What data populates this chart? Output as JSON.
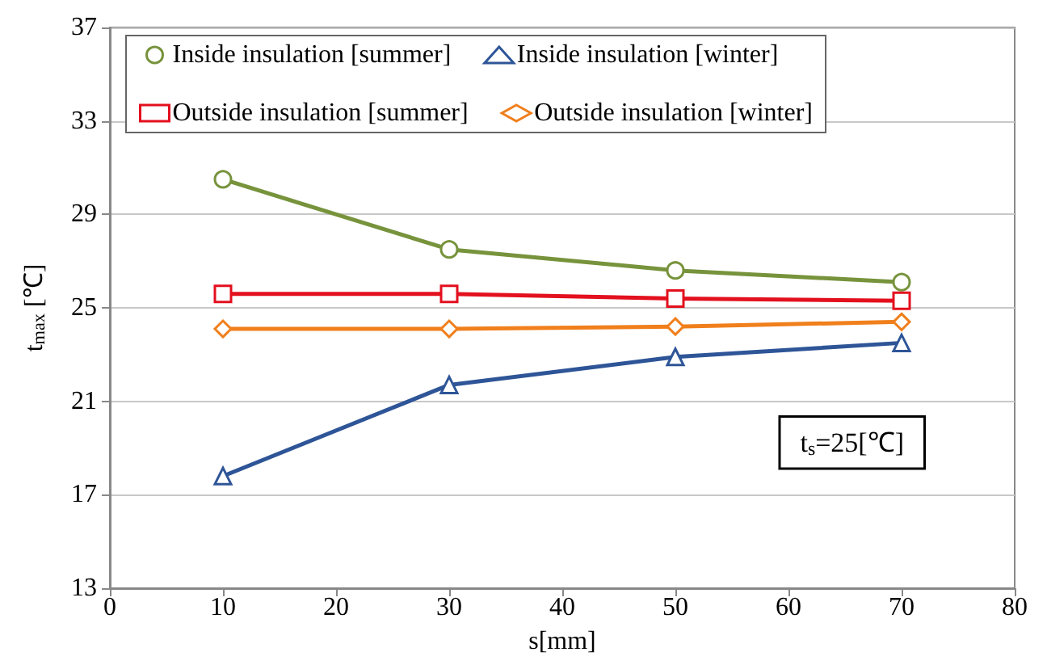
{
  "chart_data": {
    "type": "line",
    "xlabel": "s[mm]",
    "ylabel": "t$_{max}$ [℃]",
    "x": [
      10,
      30,
      50,
      70
    ],
    "series": [
      {
        "name": "Inside insulation [summer]",
        "color": "#77933c",
        "marker": "circle",
        "values": [
          30.5,
          27.5,
          26.6,
          26.1
        ]
      },
      {
        "name": "Inside insulation [winter]",
        "color": "#2e5597",
        "marker": "triangle",
        "values": [
          17.8,
          21.7,
          22.9,
          23.5
        ]
      },
      {
        "name": "Outside insulation [summer]",
        "color": "#e3101e",
        "marker": "square",
        "values": [
          25.6,
          25.6,
          25.4,
          25.3
        ]
      },
      {
        "name": "Outside insulation [winter]",
        "color": "#f07f1c",
        "marker": "diamond",
        "values": [
          24.1,
          24.1,
          24.2,
          24.4
        ]
      }
    ],
    "xlim": [
      0,
      80
    ],
    "xticks": [
      0,
      10,
      20,
      30,
      40,
      50,
      60,
      70,
      80
    ],
    "ylim": [
      13,
      37
    ],
    "yticks": [
      13,
      17,
      21,
      25,
      29,
      33,
      37
    ],
    "grid": "y",
    "legend": "top",
    "line_style": "solid",
    "annotations": [
      "t$_{s}$=25[℃]"
    ]
  }
}
